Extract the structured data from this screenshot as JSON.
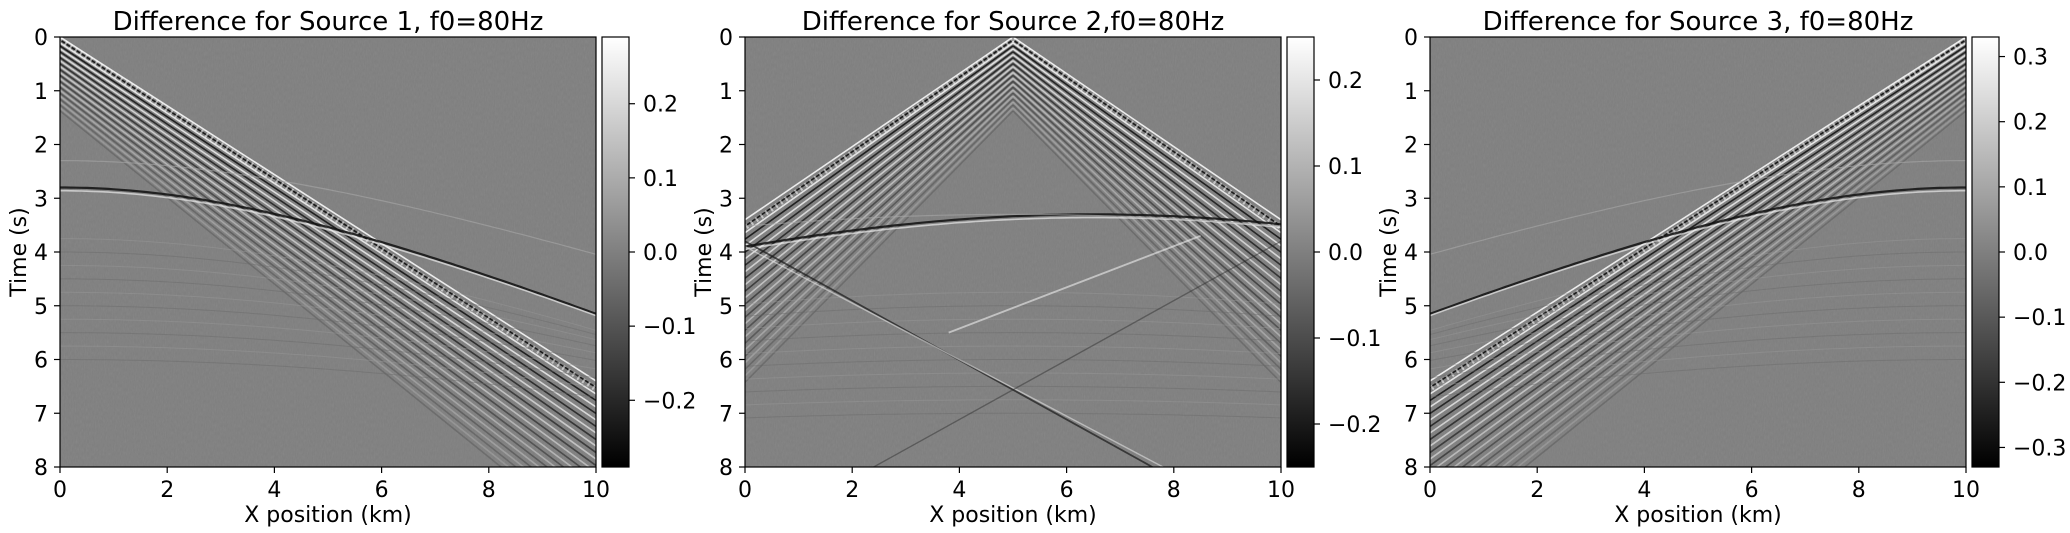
{
  "chart_data": [
    {
      "type": "heatmap",
      "title": "Difference for Source 1, f0=80Hz",
      "xlabel": "X position (km)",
      "ylabel": "Time (s)",
      "xlim": [
        0,
        10
      ],
      "ylim": [
        8,
        0
      ],
      "xticks": [
        "0",
        "2",
        "4",
        "6",
        "8",
        "10"
      ],
      "yticks": [
        "0",
        "1",
        "2",
        "3",
        "4",
        "5",
        "6",
        "7",
        "8"
      ],
      "colormap": "gray",
      "colorbar": {
        "min": -0.29,
        "max": 0.29,
        "ticks": [
          "0.2",
          "0.1",
          "0.0",
          "−0.1",
          "−0.2"
        ]
      },
      "source_x_km": 0,
      "direct_wave": {
        "t0_s": 0.0,
        "x_end_km": 10,
        "t_end_s": 6.4
      },
      "reflection_s": {
        "apex_x_km": 0,
        "apex_t_s": 2.8,
        "t_at_x10_s": 5.15
      },
      "reflection_s2_t_s": 2.3
    },
    {
      "type": "heatmap",
      "title": "Difference for Source 2,f0=80Hz",
      "xlabel": "X position (km)",
      "ylabel": "Time (s)",
      "xlim": [
        0,
        10
      ],
      "ylim": [
        8,
        0
      ],
      "xticks": [
        "0",
        "2",
        "4",
        "6",
        "8",
        "10"
      ],
      "yticks": [
        "0",
        "1",
        "2",
        "3",
        "4",
        "5",
        "6",
        "7",
        "8"
      ],
      "colormap": "gray",
      "colorbar": {
        "min": -0.25,
        "max": 0.25,
        "ticks": [
          "0.2",
          "0.1",
          "0.0",
          "−0.1",
          "−0.2"
        ]
      },
      "source_x_km": 5,
      "direct_wave": {
        "t0_s": 0.0,
        "x_end_km": 0,
        "t_end_s": 3.4
      },
      "reflection_s": {
        "apex_x_km": 6.5,
        "apex_t_s": 3.3,
        "t_at_x0_s": 3.9
      },
      "reflection_s2_t_s": 3.3
    },
    {
      "type": "heatmap",
      "title": "Difference for Source 3, f0=80Hz",
      "xlabel": "X position (km)",
      "ylabel": "Time (s)",
      "xlim": [
        0,
        10
      ],
      "ylim": [
        8,
        0
      ],
      "xticks": [
        "0",
        "2",
        "4",
        "6",
        "8",
        "10"
      ],
      "yticks": [
        "0",
        "1",
        "2",
        "3",
        "4",
        "5",
        "6",
        "7",
        "8"
      ],
      "colormap": "gray",
      "colorbar": {
        "min": -0.33,
        "max": 0.33,
        "ticks": [
          "0.3",
          "0.2",
          "0.1",
          "0.0",
          "−0.1",
          "−0.2",
          "−0.3"
        ]
      },
      "source_x_km": 10,
      "direct_wave": {
        "t0_s": 0.0,
        "x_end_km": 0,
        "t_end_s": 6.4
      },
      "reflection_s": {
        "apex_x_km": 10,
        "apex_t_s": 2.8,
        "t_at_x0_s": 5.15
      },
      "reflection_s2_t_s": 2.3
    }
  ]
}
